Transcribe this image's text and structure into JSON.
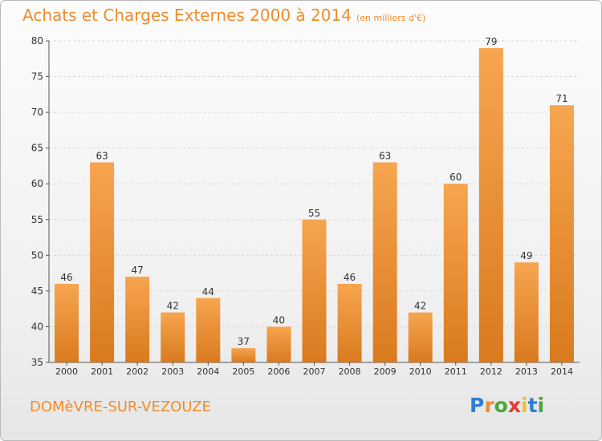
{
  "title": "Achats et Charges Externes 2000 à 2014",
  "subtitle": "(en milliers d'€)",
  "commune": "DOMèVRE-SUR-VEZOUZE",
  "logo": {
    "letters": [
      "P",
      "r",
      "o",
      "x",
      "i",
      "t",
      "i"
    ],
    "colors": [
      "#2b7fd0",
      "#f08c2c",
      "#4aa83a",
      "#e23c2c",
      "#f0c02c",
      "#2b7fd0",
      "#4aa83a"
    ]
  },
  "colors": {
    "bar_top": "#f7a550",
    "bar_bottom": "#d97a1e",
    "accent": "#f08c2c"
  },
  "chart_data": {
    "type": "bar",
    "categories": [
      "2000",
      "2001",
      "2002",
      "2003",
      "2004",
      "2005",
      "2006",
      "2007",
      "2008",
      "2009",
      "2010",
      "2011",
      "2012",
      "2013",
      "2014"
    ],
    "values": [
      46,
      63,
      47,
      42,
      44,
      37,
      40,
      55,
      46,
      63,
      42,
      60,
      79,
      49,
      71
    ],
    "ylim": [
      35,
      80
    ],
    "yticks": [
      35,
      40,
      45,
      50,
      55,
      60,
      65,
      70,
      75,
      80
    ],
    "grid": true,
    "xlabel": "",
    "ylabel": ""
  }
}
